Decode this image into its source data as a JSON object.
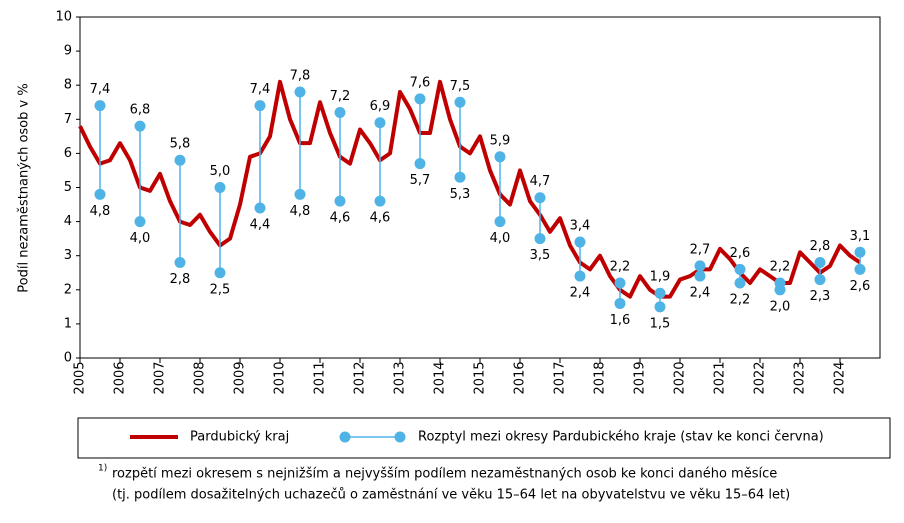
{
  "chart_data": {
    "type": "line-range",
    "ylabel": "Podíl nezaměstnaných osob v %",
    "xlim": [
      2005,
      2025
    ],
    "xticks": [
      2005,
      2006,
      2007,
      2008,
      2009,
      2010,
      2011,
      2012,
      2013,
      2014,
      2015,
      2016,
      2017,
      2018,
      2019,
      2020,
      2021,
      2022,
      2023,
      2024
    ],
    "ylim": [
      0,
      10
    ],
    "yticks": [
      0,
      1,
      2,
      3,
      4,
      5,
      6,
      7,
      8,
      9,
      10
    ],
    "series": [
      {
        "name": "Pardubický kraj",
        "color": "#c00000",
        "x": [
          2005,
          2005.25,
          2005.5,
          2005.75,
          2006,
          2006.25,
          2006.5,
          2006.75,
          2007,
          2007.25,
          2007.5,
          2007.75,
          2008,
          2008.25,
          2008.5,
          2008.75,
          2009,
          2009.25,
          2009.5,
          2009.75,
          2010,
          2010.25,
          2010.5,
          2010.75,
          2011,
          2011.25,
          2011.5,
          2011.75,
          2012,
          2012.25,
          2012.5,
          2012.75,
          2013,
          2013.25,
          2013.5,
          2013.75,
          2014,
          2014.25,
          2014.5,
          2014.75,
          2015,
          2015.25,
          2015.5,
          2015.75,
          2016,
          2016.25,
          2016.5,
          2016.75,
          2017,
          2017.25,
          2017.5,
          2017.75,
          2018,
          2018.25,
          2018.5,
          2018.75,
          2019,
          2019.25,
          2019.5,
          2019.75,
          2020,
          2020.25,
          2020.5,
          2020.75,
          2021,
          2021.25,
          2021.5,
          2021.75,
          2022,
          2022.25,
          2022.5,
          2022.75,
          2023,
          2023.25,
          2023.5,
          2023.75,
          2024,
          2024.25,
          2024.5
        ],
        "values": [
          6.8,
          6.2,
          5.7,
          5.8,
          6.3,
          5.8,
          5.0,
          4.9,
          5.4,
          4.6,
          4.0,
          3.9,
          4.2,
          3.7,
          3.3,
          3.5,
          4.5,
          5.9,
          6.0,
          6.5,
          8.1,
          7.0,
          6.3,
          6.3,
          7.5,
          6.6,
          5.9,
          5.7,
          6.7,
          6.3,
          5.8,
          6.0,
          7.8,
          7.3,
          6.6,
          6.6,
          8.1,
          7.0,
          6.2,
          6.0,
          6.5,
          5.5,
          4.8,
          4.5,
          5.5,
          4.6,
          4.2,
          3.7,
          4.1,
          3.3,
          2.8,
          2.6,
          3.0,
          2.4,
          2.0,
          1.8,
          2.4,
          2.0,
          1.8,
          1.8,
          2.3,
          2.4,
          2.6,
          2.6,
          3.2,
          2.9,
          2.5,
          2.2,
          2.6,
          2.4,
          2.2,
          2.2,
          3.1,
          2.8,
          2.5,
          2.7,
          3.3,
          3.0,
          2.8
        ]
      },
      {
        "name": "Rozptyl mezi okresy Pardubického kraje (stav ke konci června)",
        "color": "#4fb3e6",
        "x": [
          2005.5,
          2006.5,
          2007.5,
          2008.5,
          2009.5,
          2010.5,
          2011.5,
          2012.5,
          2013.5,
          2014.5,
          2015.5,
          2016.5,
          2017.5,
          2018.5,
          2019.5,
          2020.5,
          2021.5,
          2022.5,
          2023.5,
          2024.5
        ],
        "values": [
          7.4,
          6.8,
          5.8,
          5.0,
          7.4,
          7.8,
          7.2,
          6.9,
          7.6,
          7.5,
          5.9,
          4.7,
          3.4,
          2.2,
          1.9,
          2.7,
          2.6,
          2.2,
          2.8,
          3.1
        ],
        "value_labels": [
          "7,4",
          "6,8",
          "5,8",
          "5,0",
          "7,4",
          "7,8",
          "7,2",
          "6,9",
          "7,6",
          "7,5",
          "5,9",
          "4,7",
          "3,4",
          "2,2",
          "1,9",
          "2,7",
          "2,6",
          "2,2",
          "2,8",
          "3,1"
        ],
        "low_values": [
          4.8,
          4.0,
          2.8,
          2.5,
          4.4,
          4.8,
          4.6,
          4.6,
          5.7,
          5.3,
          4.0,
          3.5,
          2.4,
          1.6,
          1.5,
          2.4,
          2.2,
          2.0,
          2.3,
          2.6
        ],
        "low_value_labels": [
          "4,8",
          "4,0",
          "2,8",
          "2,5",
          "4,4",
          "4,8",
          "4,6",
          "4,6",
          "5,7",
          "5,3",
          "4,0",
          "3,5",
          "2,4",
          "1,6",
          "1,5",
          "2,4",
          "2,2",
          "2,0",
          "2,3",
          "2,6"
        ]
      }
    ],
    "footnote": {
      "marker": "1)",
      "lines": [
        "rozpětí mezi okresem s nejnižším a nejvyšším podílem  nezaměstnaných osob ke konci daného měsíce",
        "(tj. podílem  dosažitelných uchazečů o zaměstnání ve věku 15–64 let na obyvatelstvu ve věku 15–64 let)"
      ]
    }
  }
}
